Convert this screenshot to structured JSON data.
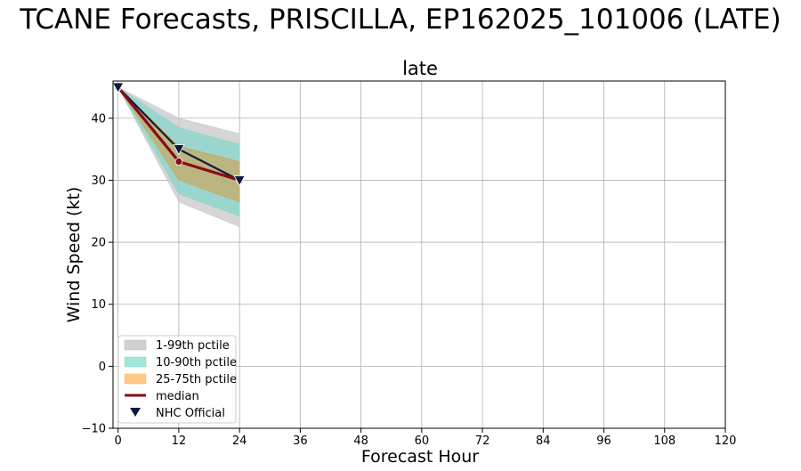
{
  "figure": {
    "suptitle": "TCANE Forecasts, PRISCILLA, EP162025_101006 (LATE)"
  },
  "chart_data": {
    "type": "line",
    "title": "late",
    "xlabel": "Forecast Hour",
    "ylabel": "Wind Speed (kt)",
    "xlim": [
      -1,
      120
    ],
    "ylim": [
      -10,
      46
    ],
    "xticks": [
      0,
      12,
      24,
      36,
      48,
      60,
      72,
      84,
      96,
      108,
      120
    ],
    "yticks": [
      -10,
      0,
      10,
      20,
      30,
      40
    ],
    "grid": true,
    "legend_position": "lower-left",
    "x": [
      0,
      12,
      24
    ],
    "bands": [
      {
        "name": "1-99th pctile",
        "color": "#c8c8c8",
        "lower": [
          45,
          26.5,
          22.5
        ],
        "upper": [
          45,
          40,
          37.5
        ]
      },
      {
        "name": "10-90th pctile",
        "color": "#8fd6cc",
        "lower": [
          45,
          27.8,
          24.2
        ],
        "upper": [
          45,
          38.5,
          35.8
        ]
      },
      {
        "name": "25-75th pctile",
        "color": "#c9a75e",
        "lower": [
          45,
          30,
          26.5
        ],
        "upper": [
          45,
          35.5,
          33
        ]
      }
    ],
    "series": [
      {
        "name": "median",
        "color": "#8b0a1a",
        "values": [
          45,
          33,
          30
        ]
      },
      {
        "name": "NHC Official",
        "color": "#0d1b3e",
        "marker": "triangle-down",
        "values": [
          45,
          35,
          30
        ]
      }
    ]
  },
  "legend": {
    "items": [
      {
        "label": "1-99th pctile",
        "swatch": "#d0d0d0"
      },
      {
        "label": "10-90th pctile",
        "swatch": "#9fe6d8"
      },
      {
        "label": "25-75th pctile",
        "swatch": "#ffc98a"
      },
      {
        "label": "median",
        "swatch": "#8b0a1a"
      },
      {
        "label": "NHC Official",
        "swatch": "#0d1b3e"
      }
    ]
  }
}
